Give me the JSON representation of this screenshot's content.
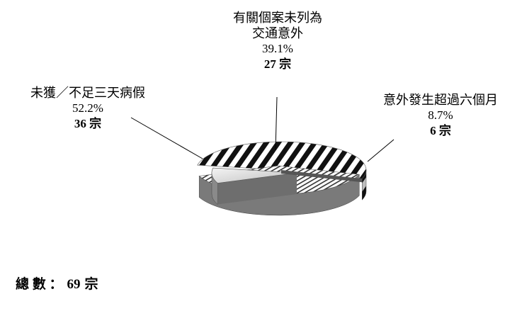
{
  "chart_data": {
    "type": "pie",
    "slices": [
      {
        "label": "未獲／不足三天病假",
        "percent": "52.2%",
        "count_num": "36",
        "count_unit": "宗",
        "value": 36,
        "pattern": "diagonal-thick"
      },
      {
        "label_line1": "有關個案未列為",
        "label_line2": "交通意外",
        "percent": "39.1%",
        "count_num": "27",
        "count_unit": "宗",
        "value": 27,
        "pattern": "diagonal-thin"
      },
      {
        "label": "意外發生超過六個月",
        "percent": "8.7%",
        "count_num": "6",
        "count_unit": "宗",
        "value": 6,
        "pattern": "solid-grey"
      }
    ]
  },
  "total": {
    "label": "總 數 ：",
    "num": "69",
    "unit": "宗"
  }
}
